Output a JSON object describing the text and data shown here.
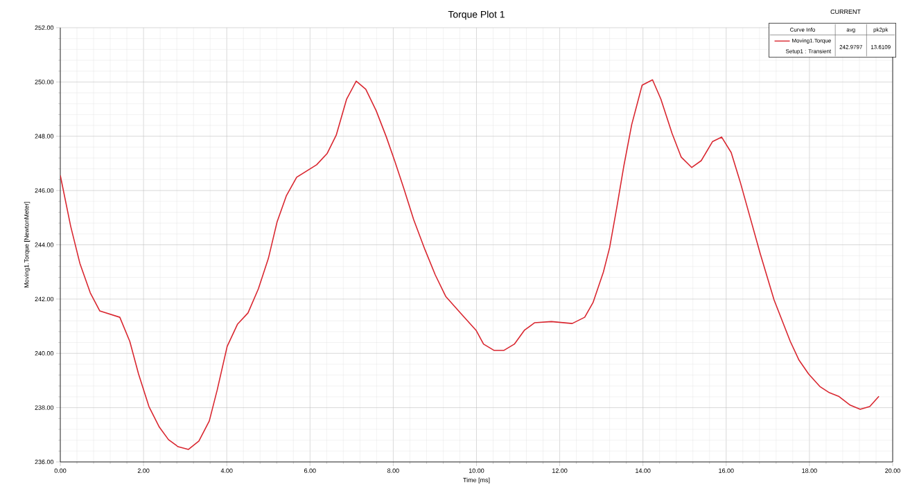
{
  "chart_data": {
    "type": "line",
    "title": "Torque Plot 1",
    "xlabel": "Time [ms]",
    "ylabel": "Moving1.Torque [NewtonMeter]",
    "xlim": [
      0,
      20
    ],
    "ylim": [
      236,
      252
    ],
    "xticks": [
      {
        "value": 0,
        "label": "0.00"
      },
      {
        "value": 2,
        "label": "2.00"
      },
      {
        "value": 4,
        "label": "4.00"
      },
      {
        "value": 6,
        "label": "6.00"
      },
      {
        "value": 8,
        "label": "8.00"
      },
      {
        "value": 10,
        "label": "10.00"
      },
      {
        "value": 12,
        "label": "12.00"
      },
      {
        "value": 14,
        "label": "14.00"
      },
      {
        "value": 16,
        "label": "16.00"
      },
      {
        "value": 18,
        "label": "18.00"
      },
      {
        "value": 20,
        "label": "20.00"
      }
    ],
    "yticks": [
      {
        "value": 236,
        "label": "236.00"
      },
      {
        "value": 238,
        "label": "238.00"
      },
      {
        "value": 240,
        "label": "240.00"
      },
      {
        "value": 242,
        "label": "242.00"
      },
      {
        "value": 244,
        "label": "244.00"
      },
      {
        "value": 246,
        "label": "246.00"
      },
      {
        "value": 248,
        "label": "248.00"
      },
      {
        "value": 250,
        "label": "250.00"
      },
      {
        "value": 252,
        "label": "252.00"
      }
    ],
    "grid": true,
    "legend": "top right",
    "annotations": [
      "CURRENT",
      "Curve Info",
      "avg",
      "pk2pk",
      "Setup1 : Transient",
      "242.9797",
      "13.6109"
    ],
    "series": [
      {
        "name": "Moving1.Torque",
        "color": "#d9262f",
        "x": [
          0,
          0.25,
          0.47,
          0.72,
          0.95,
          1.43,
          1.67,
          1.88,
          2.13,
          2.38,
          2.6,
          2.83,
          3.08,
          3.33,
          3.58,
          3.77,
          4.01,
          4.26,
          4.51,
          4.76,
          5.0,
          5.21,
          5.43,
          5.68,
          6.16,
          6.41,
          6.63,
          6.88,
          7.11,
          7.34,
          7.59,
          7.83,
          8.04,
          8.26,
          8.49,
          8.76,
          9.01,
          9.26,
          9.66,
          9.99,
          10.17,
          10.42,
          10.66,
          10.91,
          11.15,
          11.4,
          11.8,
          12.3,
          12.6,
          12.8,
          13.05,
          13.2,
          13.37,
          13.54,
          13.73,
          13.98,
          14.23,
          14.43,
          14.7,
          14.92,
          15.17,
          15.4,
          15.67,
          15.89,
          16.12,
          16.34,
          16.82,
          17.15,
          17.54,
          17.75,
          17.98,
          18.25,
          18.48,
          18.7,
          18.98,
          19.22,
          19.45,
          19.67
        ],
        "values": [
          246.56,
          244.68,
          243.32,
          242.23,
          241.56,
          241.33,
          240.44,
          239.24,
          238.04,
          237.28,
          236.82,
          236.56,
          236.46,
          236.77,
          237.51,
          238.65,
          240.26,
          241.08,
          241.49,
          242.38,
          243.5,
          244.85,
          245.8,
          246.49,
          246.95,
          247.36,
          248.04,
          249.37,
          250.03,
          249.73,
          248.94,
          247.99,
          247.07,
          246.05,
          244.93,
          243.83,
          242.89,
          242.1,
          241.41,
          240.85,
          240.34,
          240.11,
          240.11,
          240.34,
          240.85,
          241.13,
          241.17,
          241.1,
          241.33,
          241.87,
          243.0,
          243.9,
          245.36,
          246.9,
          248.43,
          249.88,
          250.08,
          249.37,
          248.1,
          247.23,
          246.85,
          247.1,
          247.8,
          247.97,
          247.4,
          246.3,
          243.66,
          241.97,
          240.44,
          239.75,
          239.24,
          238.78,
          238.55,
          238.42,
          238.09,
          237.94,
          238.04,
          238.42
        ]
      }
    ]
  }
}
